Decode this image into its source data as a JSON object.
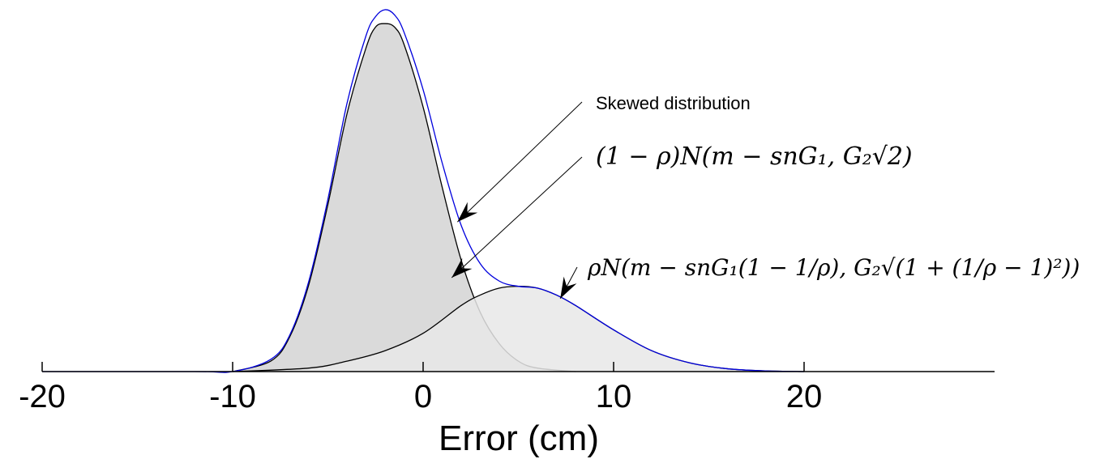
{
  "chart_data": {
    "type": "area",
    "title": "",
    "xlabel": "Error (cm)",
    "ylabel": "",
    "xlim": [
      -20,
      30
    ],
    "ylim": [
      0,
      1.04
    ],
    "x_ticks": [
      -20,
      -10,
      0,
      10,
      20
    ],
    "x_tick_labels": [
      "-20",
      "-10",
      "0",
      "10",
      "20"
    ],
    "grid": false,
    "series": [
      {
        "role": "component-1",
        "fill": "#d4d4d4",
        "line": "#000000",
        "x": [
          -10,
          -8,
          -7,
          -6,
          -5,
          -4,
          -3,
          -2.5,
          -2,
          -1.5,
          -1,
          0,
          1,
          2,
          3,
          4,
          5,
          6,
          8
        ],
        "y": [
          0.0,
          0.03,
          0.1,
          0.25,
          0.48,
          0.74,
          0.93,
          0.99,
          1.0,
          0.99,
          0.94,
          0.76,
          0.53,
          0.32,
          0.17,
          0.08,
          0.03,
          0.01,
          0.0
        ]
      },
      {
        "role": "component-2",
        "fill": "#e8e8e8",
        "line": "#000000",
        "x": [
          -10,
          -6,
          -4,
          -2,
          0,
          2,
          3,
          4,
          5,
          6,
          7,
          8,
          10,
          12,
          14,
          16,
          18,
          20
        ],
        "y": [
          0.0,
          0.01,
          0.03,
          0.06,
          0.11,
          0.19,
          0.22,
          0.24,
          0.245,
          0.24,
          0.22,
          0.19,
          0.12,
          0.06,
          0.025,
          0.008,
          0.002,
          0.0
        ]
      },
      {
        "role": "mixture",
        "fill": "none",
        "line": "#0000dd",
        "x": [
          -20,
          -12,
          -10,
          -8,
          -7,
          -6,
          -5,
          -4,
          -3,
          -2.5,
          -2,
          -1.5,
          -1,
          0,
          1,
          2,
          3,
          4,
          5,
          6,
          7,
          8,
          10,
          12,
          14,
          16,
          18,
          20
        ],
        "y": [
          0.0,
          0.0,
          0.0,
          0.035,
          0.105,
          0.26,
          0.495,
          0.77,
          0.965,
          1.02,
          1.04,
          1.025,
          0.975,
          0.81,
          0.6,
          0.42,
          0.31,
          0.26,
          0.245,
          0.24,
          0.22,
          0.19,
          0.12,
          0.06,
          0.025,
          0.008,
          0.002,
          0.0
        ]
      }
    ],
    "annotations": [
      {
        "text": "Skewed distribution",
        "points_to": [
          1.8,
          0.43
        ]
      },
      {
        "text": "(1 − ρ)N(m − snG₁, G₂√2)",
        "points_to": [
          1.5,
          0.27
        ]
      },
      {
        "text": "ρN(m − snG₁(1 − 1/ρ), G₂√(1 + (1/ρ − 1)²))",
        "points_to": [
          7.2,
          0.21
        ]
      }
    ]
  }
}
